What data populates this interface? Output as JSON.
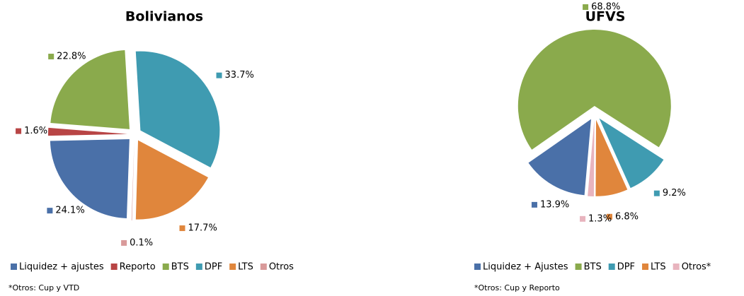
{
  "chart_data": [
    {
      "type": "pie",
      "title": "Bolivianos",
      "categories": [
        "Liquidez + ajustes",
        "Reporto",
        "BTS",
        "DPF",
        "LTS",
        "Otros"
      ],
      "values": [
        24.1,
        1.6,
        22.8,
        33.7,
        17.7,
        0.1
      ],
      "value_labels": [
        "24.1%",
        "1.6%",
        "22.8%",
        "33.7%",
        "17.7%",
        "0.1%"
      ],
      "colors": [
        "#4a70a8",
        "#b84545",
        "#8aaa4c",
        "#3f9bb1",
        "#e0863c",
        "#d99a9a"
      ],
      "footnote": "*Otros: Cup y VTD"
    },
    {
      "type": "pie",
      "title": "UFVS",
      "categories": [
        "Liquidez + Ajustes",
        "BTS",
        "DPF",
        "LTS",
        "Otros*"
      ],
      "values": [
        13.9,
        68.8,
        9.2,
        6.8,
        1.3
      ],
      "value_labels": [
        "13.9%",
        "68.8%",
        "9.2%",
        "6.8%",
        "1.3%"
      ],
      "colors": [
        "#4a70a8",
        "#8aaa4c",
        "#3f9bb1",
        "#e0863c",
        "#e8b4be"
      ],
      "footnote": "*Otros: Cup y Reporto"
    }
  ]
}
